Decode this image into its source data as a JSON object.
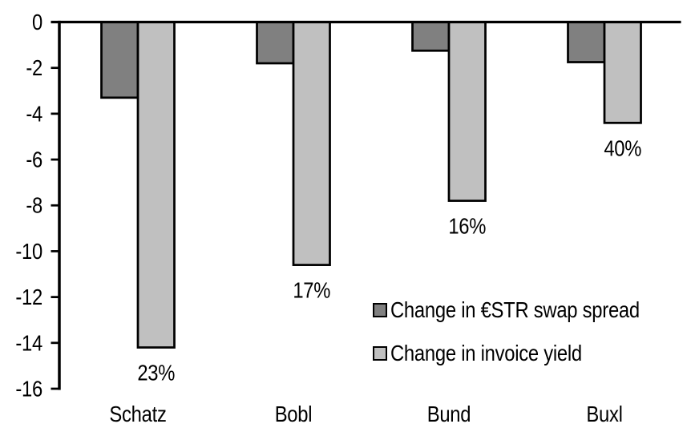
{
  "chart_data": {
    "type": "bar",
    "title": "",
    "xlabel": "",
    "ylabel": "",
    "categories": [
      "Schatz",
      "Bobl",
      "Bund",
      "Buxl"
    ],
    "series": [
      {
        "key": "swap-spread",
        "name": "Change in €STR swap spread",
        "color": "#808080",
        "values": [
          -3.3,
          -1.8,
          -1.25,
          -1.75
        ]
      },
      {
        "key": "invoice-yield",
        "name": "Change in invoice yield",
        "color": "#C0C0C0",
        "values": [
          -14.2,
          -10.6,
          -7.8,
          -4.4
        ]
      }
    ],
    "data_labels": [
      "23%",
      "17%",
      "16%",
      "40%"
    ],
    "data_labels_series": "invoice-yield",
    "yticks": [
      0,
      -2,
      -4,
      -6,
      -8,
      -10,
      -12,
      -14,
      -16
    ],
    "ylim": [
      -16,
      0
    ],
    "bar_outline": "#000000",
    "axis_color": "#000000",
    "text_color": "#000000",
    "background": "#FFFFFF",
    "grid": false,
    "legend_position": "inside-right"
  }
}
